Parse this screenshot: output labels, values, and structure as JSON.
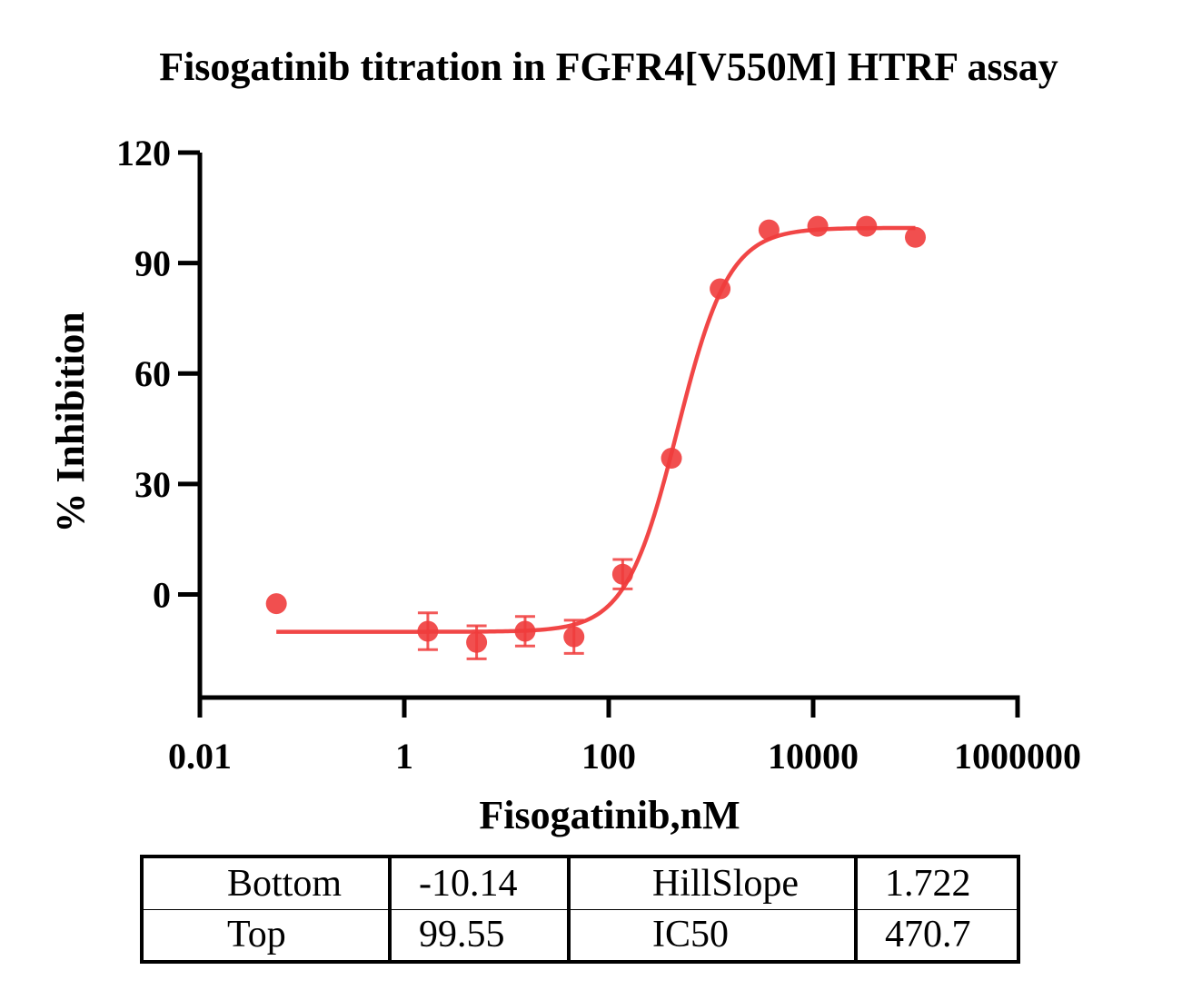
{
  "chart_data": {
    "type": "scatter",
    "title": "Fisogatinib titration in FGFR4[V550M] HTRF assay",
    "xlabel": "Fisogatinib,nM",
    "ylabel": "% Inhibition",
    "x_scale": "log",
    "xlim": [
      0.01,
      1000000
    ],
    "ylim": [
      -28,
      120
    ],
    "x_ticks": [
      0.01,
      1,
      100,
      10000,
      1000000
    ],
    "x_tick_labels": [
      "0.01",
      "1",
      "100",
      "10000",
      "1000000"
    ],
    "y_ticks": [
      0,
      30,
      60,
      90,
      120
    ],
    "y_tick_labels": [
      "0",
      "30",
      "60",
      "90",
      "120"
    ],
    "grid": false,
    "color": "#f03c3c",
    "series": [
      {
        "points": [
          {
            "x": 0.056,
            "y": -2.5,
            "err": 0
          },
          {
            "x": 1.7,
            "y": -10.0,
            "err": 5.0
          },
          {
            "x": 5.1,
            "y": -13.0,
            "err": 4.5
          },
          {
            "x": 15.2,
            "y": -10.0,
            "err": 4.0
          },
          {
            "x": 45.7,
            "y": -11.5,
            "err": 4.5
          },
          {
            "x": 137,
            "y": 5.5,
            "err": 4.0
          },
          {
            "x": 411,
            "y": 37.0,
            "err": 0
          },
          {
            "x": 1230,
            "y": 83.0,
            "err": 0
          },
          {
            "x": 3700,
            "y": 99.0,
            "err": 0
          },
          {
            "x": 11100,
            "y": 100.0,
            "err": 0
          },
          {
            "x": 33300,
            "y": 100.0,
            "err": 0
          },
          {
            "x": 100000,
            "y": 97.0,
            "err": 0
          }
        ]
      }
    ],
    "fit": {
      "model": "four-parameter logistic",
      "x_range": [
        0.056,
        100000
      ],
      "bottom": -10.14,
      "top": 99.55,
      "hill_slope": 1.722,
      "ic50": 470.7
    }
  },
  "params_table": {
    "rows": [
      {
        "label_a": "Bottom",
        "value_a": "-10.14",
        "label_b": "HillSlope",
        "value_b": "1.722"
      },
      {
        "label_a": "Top",
        "value_a": "99.55",
        "label_b": "IC50",
        "value_b": "470.7"
      }
    ]
  }
}
